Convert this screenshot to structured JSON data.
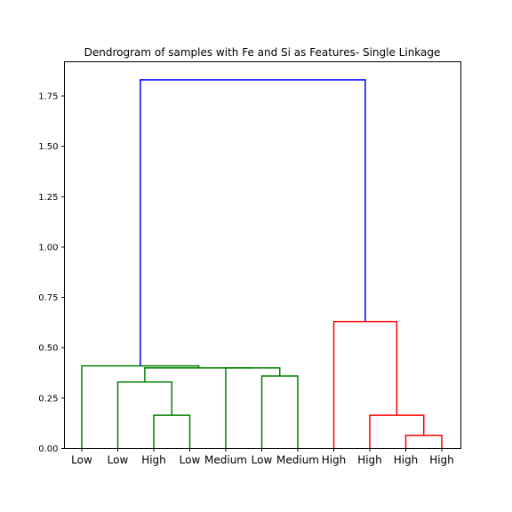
{
  "chart_data": {
    "type": "dendrogram",
    "title": "Dendrogram of samples with Fe and Si as Features- Single Linkage",
    "xlabel": "",
    "ylabel": "",
    "ylim": [
      0,
      1.92
    ],
    "yticks": [
      0.0,
      0.25,
      0.5,
      0.75,
      1.0,
      1.25,
      1.5,
      1.75
    ],
    "ytick_labels": [
      "0.00",
      "0.25",
      "0.50",
      "0.75",
      "1.00",
      "1.25",
      "1.50",
      "1.75"
    ],
    "leaf_labels": [
      "Low",
      "Low",
      "High",
      "Low",
      "Medium",
      "Low",
      "Medium",
      "High",
      "High",
      "High",
      "High"
    ],
    "colors": {
      "cluster_green": "#008000",
      "cluster_red": "#ff0000",
      "root_blue": "#0000ff",
      "axis": "#000000"
    },
    "links": [
      {
        "left": 2,
        "right": 3,
        "height": 0.165,
        "color": "cluster_green"
      },
      {
        "left": 1,
        "right": "2-3",
        "height": 0.33,
        "color": "cluster_green"
      },
      {
        "left": 5,
        "right": 6,
        "height": 0.36,
        "color": "cluster_green"
      },
      {
        "left": 4,
        "right": "5-6",
        "height": 0.4,
        "color": "cluster_green"
      },
      {
        "left": "1-3",
        "right": "4-6",
        "height": 0.4,
        "color": "cluster_green"
      },
      {
        "left": 0,
        "right": "1-6",
        "height": 0.41,
        "color": "cluster_green"
      },
      {
        "left": 9,
        "right": 10,
        "height": 0.065,
        "color": "cluster_red"
      },
      {
        "left": 8,
        "right": "9-10",
        "height": 0.165,
        "color": "cluster_red"
      },
      {
        "left": 7,
        "right": "8-10",
        "height": 0.63,
        "color": "cluster_red"
      },
      {
        "left": "0-6",
        "right": "7-10",
        "height": 1.83,
        "color": "root_blue"
      }
    ]
  }
}
